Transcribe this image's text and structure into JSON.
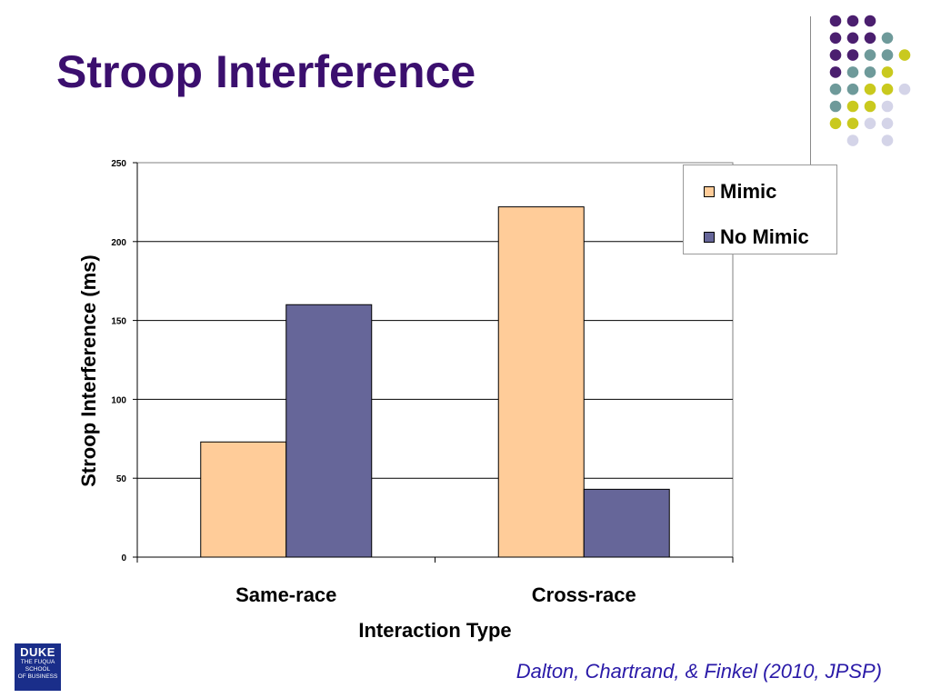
{
  "slide": {
    "title": "Stroop Interference",
    "citation": "Dalton, Chartrand, & Finkel (2010, JPSP)",
    "logo": {
      "main": "DUKE",
      "lines": [
        "THE FUQUA",
        "SCHOOL",
        "OF BUSINESS"
      ]
    },
    "colors": {
      "title": "#3b0f6e",
      "citation": "#2a1aa8",
      "logo": "#1a2e8a"
    },
    "decor_dots": {
      "colors": {
        "purple": "#4b1f6f",
        "teal": "#6e9a9a",
        "yellow": "#c9c91e",
        "lavender": "#d4d4e8"
      },
      "rows": [
        [
          "purple",
          "purple",
          "purple",
          null,
          null
        ],
        [
          "purple",
          "purple",
          "purple",
          "teal",
          null
        ],
        [
          "purple",
          "purple",
          "teal",
          "teal",
          "yellow"
        ],
        [
          "purple",
          "teal",
          "teal",
          "yellow",
          null
        ],
        [
          "teal",
          "teal",
          "yellow",
          "yellow",
          "lavender"
        ],
        [
          "teal",
          "yellow",
          "yellow",
          "lavender",
          null
        ],
        [
          "yellow",
          "yellow",
          "lavender",
          "lavender",
          null
        ],
        [
          null,
          "lavender",
          null,
          "lavender",
          null
        ]
      ]
    }
  },
  "chart_data": {
    "type": "bar",
    "title": "",
    "xlabel": "Interaction Type",
    "ylabel": "Stroop Interference (ms)",
    "categories": [
      "Same-race",
      "Cross-race"
    ],
    "series": [
      {
        "name": "Mimic",
        "values": [
          73,
          222
        ],
        "color": "#ffcc99"
      },
      {
        "name": "No Mimic",
        "values": [
          160,
          43
        ],
        "color": "#666699"
      }
    ],
    "ylim": [
      0,
      250
    ],
    "yticks": [
      0,
      50,
      100,
      150,
      200,
      250
    ],
    "grid": true,
    "legend": "top-right"
  }
}
